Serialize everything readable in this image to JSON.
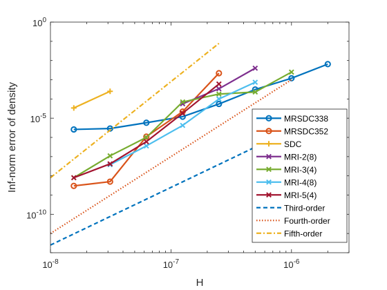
{
  "chart_data": {
    "type": "line",
    "xscale": "log",
    "yscale": "log",
    "xlabel": "H",
    "ylabel": "Inf-norm error of density",
    "xlim": [
      1e-08,
      3e-06
    ],
    "ylim": [
      1e-12,
      1
    ],
    "grid": false,
    "legend_position": "right",
    "xticks": [
      1e-08,
      1e-07,
      1e-06
    ],
    "xtick_labels": [
      {
        "base": "10",
        "exp": "-8"
      },
      {
        "base": "10",
        "exp": "-7"
      },
      {
        "base": "10",
        "exp": "-6"
      }
    ],
    "yticks": [
      1,
      1e-05,
      1e-10
    ],
    "ytick_labels": [
      {
        "base": "10",
        "exp": "0"
      },
      {
        "base": "10",
        "exp": "-5"
      },
      {
        "base": "10",
        "exp": "-10"
      }
    ],
    "series": [
      {
        "name": "MRSDC338",
        "color": "#0072BD",
        "marker": "circle",
        "dash": "solid",
        "x": [
          1.5625e-08,
          3.125e-08,
          6.25e-08,
          1.25e-07,
          2.5e-07,
          5e-07,
          1e-06,
          2e-06
        ],
        "y": [
          2.6e-06,
          2.9e-06,
          5.8e-06,
          1.2e-05,
          5.5e-05,
          0.00031,
          0.0012,
          0.0065
        ]
      },
      {
        "name": "MRSDC352",
        "color": "#D95319",
        "marker": "circle",
        "dash": "solid",
        "x": [
          1.5625e-08,
          3.125e-08,
          6.25e-08,
          1.25e-07,
          2.5e-07
        ],
        "y": [
          3e-09,
          5e-09,
          1.1e-06,
          2.2e-05,
          0.0022
        ]
      },
      {
        "name": "SDC",
        "color": "#EDB120",
        "marker": "plus",
        "dash": "solid",
        "x": [
          1.5625e-08,
          3.125e-08
        ],
        "y": [
          3.4e-05,
          0.00025
        ]
      },
      {
        "name": "MRI-2(8)",
        "color": "#7E2F8E",
        "marker": "x",
        "dash": "solid",
        "x": [
          1.25e-07,
          2.5e-07,
          5e-07
        ],
        "y": [
          5.6e-05,
          0.00034,
          0.004
        ]
      },
      {
        "name": "MRI-3(4)",
        "color": "#77AC30",
        "marker": "x",
        "dash": "solid",
        "x": [
          1.5625e-08,
          3.125e-08,
          6.25e-08,
          1.25e-07,
          2.5e-07,
          5e-07,
          1e-06
        ],
        "y": [
          8e-09,
          1.1e-07,
          1e-06,
          7e-05,
          0.00018,
          0.00023,
          0.0025
        ]
      },
      {
        "name": "MRI-4(8)",
        "color": "#4DBEEE",
        "marker": "x",
        "dash": "solid",
        "x": [
          3.125e-08,
          6.25e-08,
          1.25e-07,
          2.5e-07,
          5e-07
        ],
        "y": [
          3.8e-08,
          3.6e-07,
          4.2e-06,
          0.0001,
          0.00074
        ]
      },
      {
        "name": "MRI-5(4)",
        "color": "#A2142F",
        "marker": "x",
        "dash": "solid",
        "x": [
          1.5625e-08,
          3.125e-08,
          6.25e-08,
          1.25e-07,
          2.5e-07
        ],
        "y": [
          8e-09,
          4.2e-08,
          6e-07,
          1.8e-05,
          0.0006
        ]
      },
      {
        "name": "Third-order",
        "color": "#0072BD",
        "marker": "none",
        "dash": "dash",
        "x": [
          1e-08,
          1e-06
        ],
        "y": [
          2.5e-12,
          2.5e-06
        ]
      },
      {
        "name": "Fourth-order",
        "color": "#D95319",
        "marker": "none",
        "dash": "dot",
        "x": [
          1e-08,
          1e-06
        ],
        "y": [
          1e-11,
          0.001
        ]
      },
      {
        "name": "Fifth-order",
        "color": "#EDB120",
        "marker": "none",
        "dash": "dashdot",
        "x": [
          1e-08,
          2.5e-07
        ],
        "y": [
          8e-09,
          0.078
        ]
      }
    ]
  }
}
